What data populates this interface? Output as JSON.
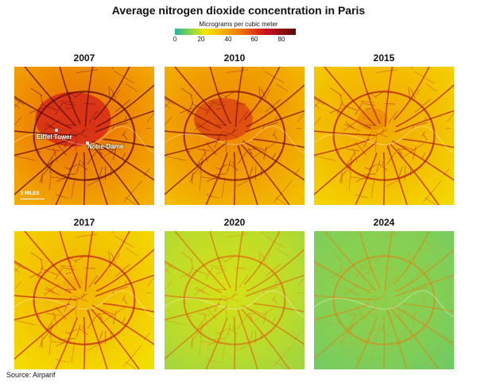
{
  "title": "Average nitrogen dioxide concentration in Paris",
  "legend": {
    "label": "Micrograms per cubic meter",
    "ticks": [
      "0",
      "20",
      "40",
      "60",
      "80"
    ],
    "colors": [
      "#1fb8a0",
      "#f5e800",
      "#f08a00",
      "#d0121f",
      "#5a0a0a"
    ]
  },
  "panels": [
    {
      "year": "2007",
      "level": 0.95
    },
    {
      "year": "2010",
      "level": 0.85
    },
    {
      "year": "2015",
      "level": 0.68
    },
    {
      "year": "2017",
      "level": 0.62
    },
    {
      "year": "2020",
      "level": 0.3
    },
    {
      "year": "2024",
      "level": 0.15
    }
  ],
  "annotations": {
    "eiffel": "Eiffel Tower",
    "notre_dame": "Notre-Dame",
    "scale": "2 MILES"
  },
  "source": "Source: Airparif"
}
